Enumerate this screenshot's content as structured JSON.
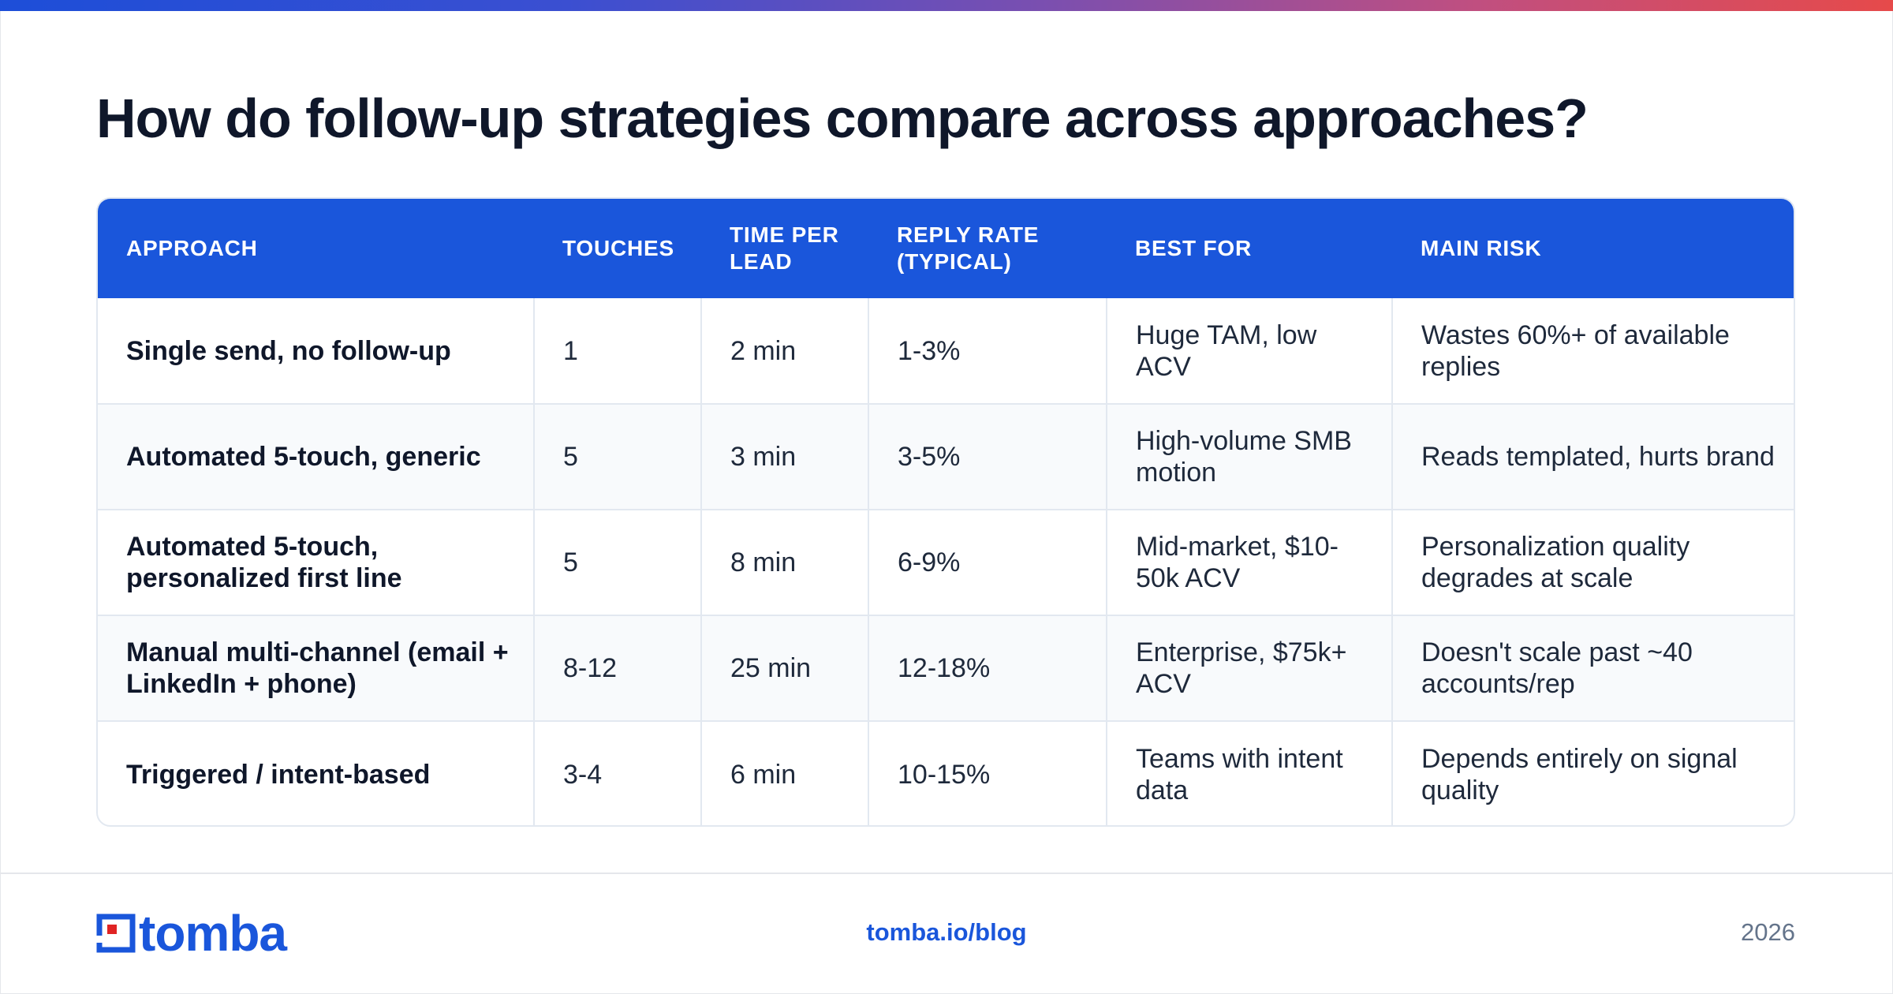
{
  "title": "How do follow-up strategies compare across approaches?",
  "table": {
    "headers": [
      [
        "APPROACH"
      ],
      [
        "TOUCHES"
      ],
      [
        "TIME PER",
        "LEAD"
      ],
      [
        "REPLY RATE",
        "(TYPICAL)"
      ],
      [
        "BEST FOR"
      ],
      [
        "MAIN RISK"
      ]
    ],
    "rows": [
      {
        "approach": "Single send, no follow-up",
        "touches": "1",
        "time": "2 min",
        "reply": "1-3%",
        "best_for": "Huge TAM, low ACV",
        "risk": "Wastes 60%+ of available replies"
      },
      {
        "approach": "Automated 5-touch, generic",
        "touches": "5",
        "time": "3 min",
        "reply": "3-5%",
        "best_for": "High-volume SMB motion",
        "risk": "Reads templated, hurts brand"
      },
      {
        "approach": "Automated 5-touch, personalized first line",
        "touches": "5",
        "time": "8 min",
        "reply": "6-9%",
        "best_for": "Mid-market, $10-50k ACV",
        "risk": "Personalization quality degrades at scale"
      },
      {
        "approach": "Manual multi-channel (email + LinkedIn + phone)",
        "touches": "8-12",
        "time": "25 min",
        "reply": "12-18%",
        "best_for": "Enterprise, $75k+ ACV",
        "risk": "Doesn't scale past ~40 accounts/rep"
      },
      {
        "approach": "Triggered / intent-based",
        "touches": "3-4",
        "time": "6 min",
        "reply": "10-15%",
        "best_for": "Teams with intent data",
        "risk": "Depends entirely on signal quality"
      }
    ]
  },
  "footer": {
    "logo_text": "tomba",
    "link": "tomba.io/blog",
    "year": "2026"
  },
  "colors": {
    "accent": "#1a56db",
    "logo_red": "#e02424",
    "header_text": "#ffffff",
    "alt_row": "#f8fafc"
  }
}
